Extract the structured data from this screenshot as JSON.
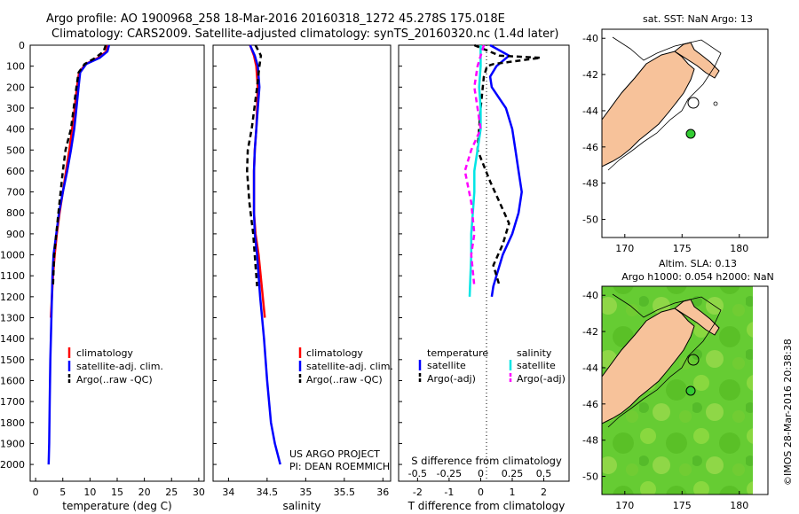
{
  "header": {
    "line1": "Argo profile: AO 1900968_258 18-Mar-2016 20160318_1272 45.278S 175.018E",
    "line2": "Climatology: CARS2009. Satellite-adjusted climatology: synTS_20160320.nc (1.4d later)"
  },
  "colors": {
    "climatology": "#ff0000",
    "satellite": "#0000ff",
    "argo": "#000000",
    "salinity_satellite": "#00e5e5",
    "salinity_argo": "#ff00ff",
    "land": "#f7c29a",
    "dots": "#33cc33"
  },
  "chart_data": [
    {
      "id": "temperature",
      "type": "line",
      "xlabel": "temperature (deg C)",
      "ylabel": "",
      "xlim": [
        -1,
        31
      ],
      "ylim": [
        2080,
        0
      ],
      "xticks": [
        "0",
        "5",
        "10",
        "15",
        "20",
        "25",
        "30"
      ],
      "yticks": [
        "0",
        "100",
        "200",
        "300",
        "400",
        "500",
        "600",
        "700",
        "800",
        "900",
        "1000",
        "1100",
        "1200",
        "1300",
        "1400",
        "1500",
        "1600",
        "1700",
        "1800",
        "1900",
        "2000"
      ],
      "legend": [
        "climatology",
        "satellite-adj. clim.",
        "Argo(..raw -QC)"
      ],
      "series": [
        {
          "name": "climatology",
          "color": "red",
          "style": "solid",
          "x": [
            13.2,
            13.0,
            11.5,
            9.2,
            8.0,
            7.6,
            7.2,
            6.7,
            6.2,
            5.6,
            5.0,
            4.4,
            3.9,
            3.5,
            3.2,
            3.0,
            2.8
          ],
          "y": [
            0,
            30,
            60,
            90,
            130,
            200,
            300,
            400,
            500,
            600,
            700,
            800,
            900,
            1000,
            1100,
            1200,
            1300
          ]
        },
        {
          "name": "satellite-adj. clim.",
          "color": "blue",
          "style": "solid",
          "x": [
            13.5,
            13.2,
            11.8,
            9.3,
            8.2,
            7.9,
            7.5,
            7.1,
            6.5,
            5.8,
            5.0,
            4.3,
            3.8,
            3.3,
            3.1,
            3.0,
            2.9,
            2.8,
            2.7,
            2.6,
            2.5,
            2.4
          ],
          "y": [
            0,
            30,
            60,
            90,
            130,
            200,
            300,
            400,
            500,
            600,
            700,
            800,
            900,
            1000,
            1100,
            1200,
            1300,
            1400,
            1500,
            1700,
            1900,
            2000
          ]
        },
        {
          "name": "Argo(..raw -QC)",
          "color": "black",
          "style": "dashed",
          "x": [
            12.9,
            12.5,
            11.0,
            9.0,
            7.9,
            7.5,
            7.0,
            6.5,
            5.5,
            5.0,
            4.6,
            4.2,
            3.8,
            3.4,
            3.2
          ],
          "y": [
            0,
            30,
            60,
            90,
            130,
            200,
            300,
            400,
            500,
            600,
            700,
            800,
            900,
            1000,
            1150
          ]
        }
      ]
    },
    {
      "id": "salinity",
      "type": "line",
      "xlabel": "salinity",
      "ylabel": "",
      "xlim": [
        33.8,
        36.1
      ],
      "ylim": [
        2080,
        0
      ],
      "xticks": [
        "34",
        "34.5",
        "35",
        "35.5",
        "36"
      ],
      "legend": [
        "climatology",
        "satellite-adj. clim.",
        "Argo(..raw -QC)"
      ],
      "series": [
        {
          "name": "climatology",
          "color": "red",
          "style": "solid",
          "x": [
            34.28,
            34.33,
            34.36,
            34.38,
            34.37,
            34.36,
            34.34,
            34.33,
            34.33,
            34.35,
            34.39,
            34.43,
            34.47
          ],
          "y": [
            0,
            50,
            100,
            200,
            300,
            400,
            500,
            600,
            800,
            900,
            1000,
            1150,
            1300
          ]
        },
        {
          "name": "satellite-adj. clim.",
          "color": "blue",
          "style": "solid",
          "x": [
            34.28,
            34.34,
            34.38,
            34.4,
            34.38,
            34.36,
            34.34,
            34.33,
            34.33,
            34.34,
            34.37,
            34.41,
            34.46,
            34.5,
            34.55,
            34.6,
            34.67
          ],
          "y": [
            0,
            50,
            100,
            200,
            300,
            400,
            500,
            600,
            800,
            900,
            1000,
            1200,
            1400,
            1600,
            1800,
            1900,
            2000
          ]
        },
        {
          "name": "Argo(..raw -QC)",
          "color": "black",
          "style": "dashed",
          "x": [
            34.35,
            34.42,
            34.4,
            34.37,
            34.3,
            34.25,
            34.24,
            34.27,
            34.32,
            34.35,
            34.37
          ],
          "y": [
            0,
            50,
            100,
            200,
            400,
            500,
            600,
            750,
            900,
            1050,
            1150
          ]
        }
      ],
      "annotation_lines": [
        "US ARGO PROJECT",
        "PI: DEAN ROEMMICH"
      ]
    },
    {
      "id": "difference",
      "type": "line",
      "xlabel": "T difference from climatology",
      "top_label": "S difference from climatology",
      "xlim": [
        -2.6,
        2.8
      ],
      "ylim": [
        2080,
        0
      ],
      "xticks": [
        "-2",
        "-1",
        "0",
        "1",
        "2"
      ],
      "top_ticks": [
        "-0.5",
        "-0.25",
        "0",
        "0.25",
        "0.5"
      ],
      "legend_titles": [
        "temperature",
        "salinity"
      ],
      "legend": [
        "satellite",
        "Argo(-adj)",
        "satellite",
        "Argo(-adj)"
      ],
      "series": [
        {
          "name": "T satellite",
          "color": "blue",
          "style": "solid",
          "x": [
            0.3,
            0.9,
            0.5,
            0.3,
            0.35,
            0.8,
            1.0,
            1.1,
            1.2,
            1.3,
            1.25,
            1.2,
            1.0,
            0.7,
            0.5,
            0.4,
            0.35
          ],
          "y": [
            0,
            50,
            100,
            150,
            200,
            300,
            400,
            500,
            600,
            700,
            750,
            800,
            900,
            1000,
            1100,
            1150,
            1200
          ]
        },
        {
          "name": "T Argo(-adj)",
          "color": "black",
          "style": "dashed",
          "x": [
            -0.2,
            0.6,
            1.9,
            0.4,
            0.2,
            0.1,
            0.0,
            -0.1,
            0.3,
            0.6,
            0.9,
            0.7,
            0.4,
            0.6
          ],
          "y": [
            0,
            50,
            60,
            90,
            100,
            150,
            300,
            500,
            650,
            750,
            850,
            950,
            1050,
            1150
          ]
        },
        {
          "name": "S satellite",
          "color": "cyan",
          "style": "solid",
          "x": [
            0.0,
            0.0,
            -0.05,
            0.0,
            0.0,
            -0.1,
            -0.2,
            -0.2,
            -0.25,
            -0.3,
            -0.3,
            -0.35
          ],
          "y": [
            0,
            100,
            200,
            300,
            400,
            500,
            600,
            700,
            800,
            900,
            1000,
            1200
          ]
        },
        {
          "name": "S Argo(-adj)",
          "color": "magenta",
          "style": "dashed",
          "x": [
            0.1,
            -0.1,
            -0.2,
            -0.1,
            0.0,
            -0.3,
            -0.5,
            -0.3,
            -0.2,
            -0.3,
            -0.2
          ],
          "y": [
            0,
            100,
            200,
            300,
            400,
            500,
            600,
            750,
            900,
            1000,
            1150
          ]
        }
      ]
    },
    {
      "id": "map-sst",
      "type": "map",
      "title": "sat. SST: NaN Argo: 13",
      "xlim": [
        168,
        182.5
      ],
      "ylim": [
        -51,
        -39.5
      ],
      "xticks": [
        "170",
        "175",
        "180"
      ],
      "yticks": [
        "-40",
        "-42",
        "-44",
        "-46",
        "-48",
        "-50"
      ],
      "argo_position": [
        175.018,
        -45.278
      ]
    },
    {
      "id": "map-sla",
      "type": "map",
      "title_line1": "Altim. SLA: 0.13",
      "title_line2": "Argo h1000: 0.054 h2000: NaN",
      "xlim": [
        168,
        182.5
      ],
      "ylim": [
        -51,
        -39.5
      ],
      "xticks": [
        "170",
        "175",
        "180"
      ],
      "yticks": [
        "-40",
        "-42",
        "-44",
        "-46",
        "-48",
        "-50"
      ],
      "argo_position": [
        175.018,
        -45.278
      ]
    }
  ],
  "credit": "©IMOS 28-Mar-2016 20:38:38"
}
